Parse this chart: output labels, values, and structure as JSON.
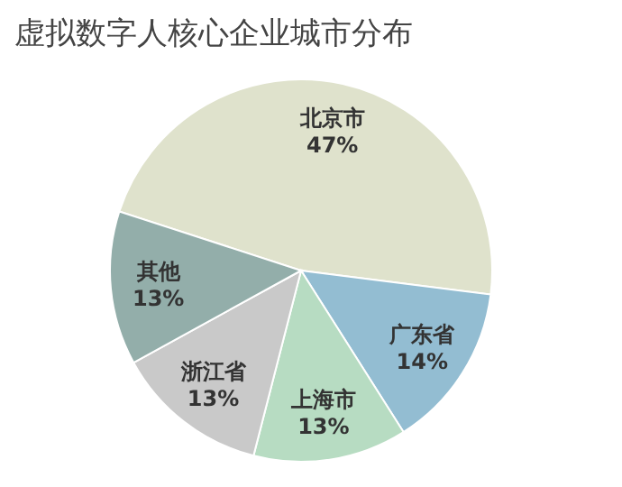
{
  "chart_data": {
    "type": "pie",
    "title": "虚拟数字人核心企业城市分布",
    "categories": [
      "北京市",
      "广东省",
      "上海市",
      "浙江省",
      "其他"
    ],
    "values": [
      47,
      14,
      13,
      13,
      13
    ],
    "colors": [
      "#dfe2cc",
      "#93bdd2",
      "#b7dcc2",
      "#c9c9c9",
      "#93aeaa"
    ],
    "value_labels": [
      "47%",
      "14%",
      "13%",
      "13%",
      "13%"
    ]
  }
}
